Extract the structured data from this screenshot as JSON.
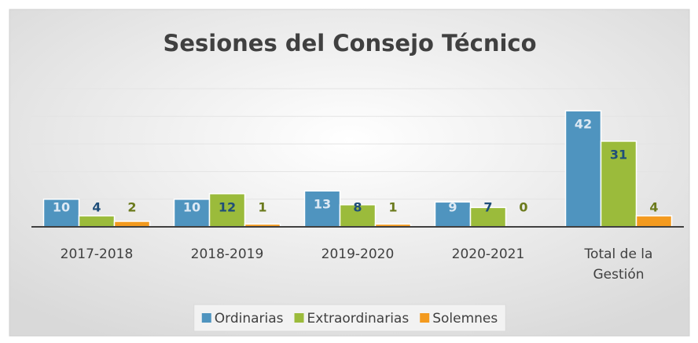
{
  "chart_data": {
    "type": "bar",
    "title": "Sesiones del Consejo Técnico",
    "categories": [
      "2017-2018",
      "2018-2019",
      "2019-2020",
      "2020-2021",
      "Total de la Gestión"
    ],
    "series": [
      {
        "name": "Ordinarias",
        "color": "#4f94bf",
        "values": [
          10,
          10,
          13,
          9,
          42
        ]
      },
      {
        "name": "Extraordinarias",
        "color": "#9bbb3b",
        "values": [
          4,
          12,
          8,
          7,
          31
        ]
      },
      {
        "name": "Solemnes",
        "color": "#f39a1f",
        "values": [
          2,
          1,
          1,
          0,
          4
        ]
      }
    ],
    "ylim": [
      0,
      50
    ],
    "yticks": [
      0,
      10,
      20,
      30,
      40,
      50
    ],
    "grid": true,
    "legend": "bottom"
  }
}
